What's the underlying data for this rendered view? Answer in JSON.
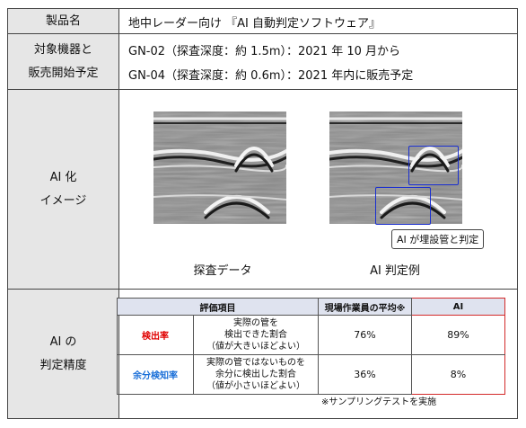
{
  "rows": {
    "product": {
      "label": "製品名",
      "value": "地中レーダー向け 『AI 自動判定ソフトウェア』"
    },
    "devices": {
      "label_lines": [
        "対象機器と",
        "販売開始予定"
      ],
      "values": [
        "GN-02（探査深度：約 1.5m）：2021 年 10 月から",
        "GN-04（探査深度：約 0.6m）：2021 年内に販売予定"
      ]
    },
    "image": {
      "label_lines": [
        "AI 化",
        "イメージ"
      ],
      "left_caption": "探査データ",
      "right_caption": "AI 判定例",
      "ai_callout": "AI が埋設管と判定"
    },
    "accuracy": {
      "label_lines": [
        "AI の",
        "判定精度"
      ],
      "headers": [
        "評価項目",
        "現場作業員の平均※",
        "AI"
      ],
      "metrics": [
        {
          "name": "検出率",
          "desc_lines": [
            "実際の管を",
            "検出できた割合",
            "（値が大きいほどよい）"
          ],
          "worker": "76%",
          "ai": "89%"
        },
        {
          "name": "余分検知率",
          "desc_lines": [
            "実際の管ではないものを",
            "余分に検出した割合",
            "（値が小さいほどよい）"
          ],
          "worker": "36%",
          "ai": "8%"
        }
      ],
      "footnote": "※サンプリングテストを実施"
    }
  },
  "colors": {
    "label_bg": "#e6e6e6",
    "detect_red": "#e00000",
    "false_blue": "#1a6fd8",
    "ai_border": "#d42a2a",
    "box_blue": "#1a2fd0"
  }
}
